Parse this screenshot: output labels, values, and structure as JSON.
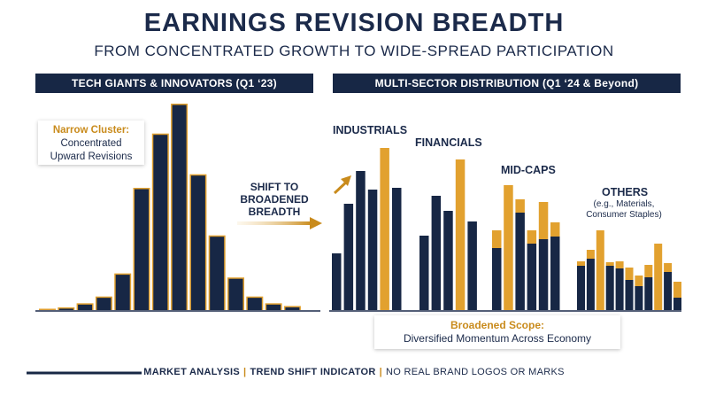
{
  "header": {
    "title": "EARNINGS REVISION BREADTH",
    "subtitle": "FROM CONCENTRATED GROWTH TO WIDE-SPREAD PARTICIPATION"
  },
  "panels": {
    "left_banner": "TECH GIANTS & INNOVATORS (Q1 ‘23)",
    "right_banner": "MULTI-SECTOR DISTRIBUTION (Q1 ‘24 & Beyond)"
  },
  "callouts": {
    "narrow_title": "Narrow Cluster:",
    "narrow_line1": "Concentrated",
    "narrow_line2": "Upward Revisions",
    "shift_line1": "SHIFT TO",
    "shift_line2": "BROADENED",
    "shift_line3": "BREADTH",
    "broad_title": "Broadened Scope:",
    "broad_text": "Diversified Momentum Across Economy"
  },
  "footer": {
    "item1": "MARKET ANALYSIS",
    "item2": "TREND SHIFT INDICATOR",
    "item3": "NO REAL BRAND LOGOS OR MARKS"
  },
  "colors": {
    "navy": "#172745",
    "gold": "#e2a12f",
    "gold_dark": "#c98b1c"
  },
  "chart_data": [
    {
      "type": "bar",
      "panel": "TECH GIANTS & INNOVATORS (Q1 ‘23)",
      "values": [
        1,
        2,
        5,
        10,
        27,
        90,
        130,
        152,
        100,
        55,
        24,
        10,
        5,
        3
      ]
    },
    {
      "type": "bar",
      "panel": "MULTI-SECTOR DISTRIBUTION (Q1 ‘24 & Beyond)",
      "groups": [
        {
          "label": "INDUSTRIALS",
          "bars": [
            {
              "navy": 64,
              "gold": 0
            },
            {
              "navy": 120,
              "gold": 0
            },
            {
              "navy": 157,
              "gold": 0
            },
            {
              "navy": 136,
              "gold": 0
            },
            {
              "navy": 0,
              "gold": 183
            },
            {
              "navy": 138,
              "gold": 0
            }
          ]
        },
        {
          "label": "FINANCIALS",
          "bars": [
            {
              "navy": 84,
              "gold": 0
            },
            {
              "navy": 129,
              "gold": 0
            },
            {
              "navy": 112,
              "gold": 0
            },
            {
              "navy": 0,
              "gold": 170
            },
            {
              "navy": 100,
              "gold": 0
            }
          ]
        },
        {
          "label": "MID-CAPS",
          "bars": [
            {
              "navy": 70,
              "gold": 20
            },
            {
              "navy": 0,
              "gold": 141
            },
            {
              "navy": 110,
              "gold": 15
            },
            {
              "navy": 75,
              "gold": 15
            },
            {
              "navy": 80,
              "gold": 42
            },
            {
              "navy": 83,
              "gold": 16
            }
          ]
        },
        {
          "label": "OTHERS",
          "sublabel1": "(e.g., Materials,",
          "sublabel2": "Consumer Staples)",
          "bars": [
            {
              "navy": 50,
              "gold": 5
            },
            {
              "navy": 58,
              "gold": 10
            },
            {
              "navy": 0,
              "gold": 90
            },
            {
              "navy": 50,
              "gold": 4
            },
            {
              "navy": 47,
              "gold": 8
            },
            {
              "navy": 34,
              "gold": 14
            },
            {
              "navy": 27,
              "gold": 12
            },
            {
              "navy": 37,
              "gold": 14
            },
            {
              "navy": 0,
              "gold": 75
            },
            {
              "navy": 43,
              "gold": 10
            },
            {
              "navy": 14,
              "gold": 18
            }
          ]
        }
      ]
    }
  ]
}
